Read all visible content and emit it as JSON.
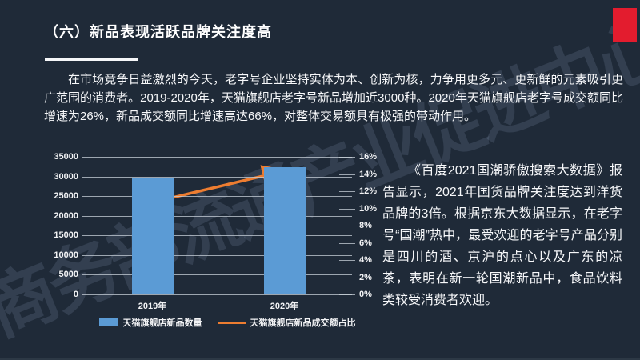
{
  "header": {
    "title": "（六）新品表现活跃品牌关注度高"
  },
  "intro_paragraph": "在市场竞争日益激烈的今天，老字号企业坚持实体为本、创新为核，力争用更多元、更新鲜的元素吸引更广范围的消费者。2019-2020年，天猫旗舰店老字号新品增加近3000种。2020年天猫旗舰店老字号成交额同比增速为26%，新品成交额同比增速高达66%，对整体交易额具有极强的带动作用。",
  "side_note": "《百度2021国潮骄傲搜索大数据》报告显示，2021年国货品牌关注度达到洋货品牌的3倍。根据京东大数据显示，在老字号“国潮”热中，最受欢迎的老字号产品分别是四川的酒、京沪的点心以及广东的凉茶，表明在新一轮国潮新品中，食品饮料类较受消费者欢迎。",
  "watermark_text": "商务部流通产业促进中心",
  "colors": {
    "background": "#1f2a38",
    "accent_red": "#e31c2e",
    "bar_blue": "#5b9bd5",
    "line_orange": "#ed7d31",
    "gridline": "#c8d0d8",
    "text": "#ffffff"
  },
  "chart_data": {
    "type": "bar+line",
    "title": "",
    "xlabel": "",
    "ylabel": "",
    "categories": [
      "2019年",
      "2020年"
    ],
    "series": [
      {
        "name": "天猫旗舰店新品数量",
        "type": "bar",
        "axis": "left",
        "color": "#5b9bd5",
        "values": [
          29700,
          32300
        ]
      },
      {
        "name": "天猫旗舰店新品成交额占比",
        "type": "line",
        "axis": "right",
        "color": "#ed7d31",
        "unit": "%",
        "values": [
          10.7,
          14.3
        ],
        "arrow_end": true
      }
    ],
    "left_axis": {
      "min": 0,
      "max": 35000,
      "step": 5000,
      "tick_labels": [
        "0",
        "5000",
        "10000",
        "15000",
        "20000",
        "25000",
        "30000",
        "35000"
      ]
    },
    "right_axis": {
      "min": 0,
      "max": 16,
      "step": 2,
      "tick_labels": [
        "0%",
        "2%",
        "4%",
        "6%",
        "8%",
        "10%",
        "12%",
        "14%",
        "16%"
      ]
    },
    "grid": true,
    "legend_position": "bottom"
  }
}
